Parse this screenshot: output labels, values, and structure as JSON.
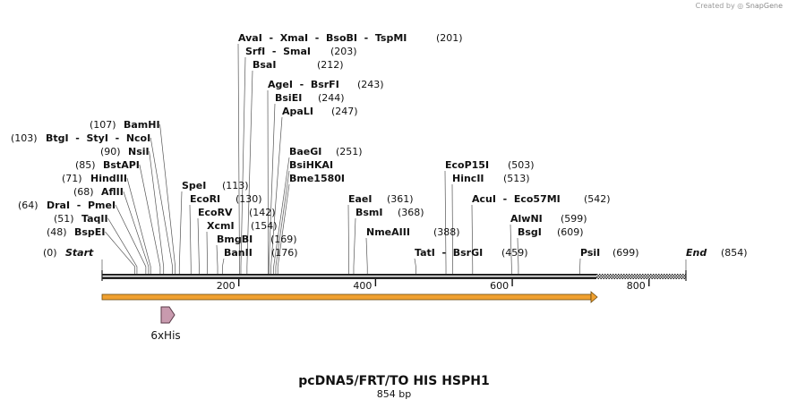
{
  "credit": {
    "text": "Created by",
    "brand": "SnapGene"
  },
  "map": {
    "title": "pcDNA5/FRT/TO HIS HSPH1",
    "length_label": "854 bp",
    "length": 854,
    "start_label": "Start",
    "end_label": "End",
    "start_pos": "(0)",
    "end_pos": "(854)"
  },
  "ticks": [
    {
      "value": 200,
      "label": "200"
    },
    {
      "value": 400,
      "label": "400"
    },
    {
      "value": 600,
      "label": "600"
    },
    {
      "value": 800,
      "label": "800"
    }
  ],
  "sites": [
    {
      "text": "AvaI  -  XmaI  -  BsoBI  -  TspMI",
      "pos": "(201)"
    },
    {
      "text": "SrfI  -  SmaI",
      "pos": "(203)"
    },
    {
      "text": "BsaI",
      "pos": "(212)"
    },
    {
      "text": "AgeI  -  BsrFI",
      "pos": "(243)"
    },
    {
      "text": "BsiEI",
      "pos": "(244)"
    },
    {
      "text": "ApaLI",
      "pos": "(247)"
    },
    {
      "text": "BaeGI",
      "pos": "(251)"
    },
    {
      "text": "BsiHKAI",
      "pos": ""
    },
    {
      "text": "Bme1580I",
      "pos": ""
    },
    {
      "text": "BamHI",
      "pos": "(107)"
    },
    {
      "text": "BtgI  -  StyI  -  NcoI",
      "pos": "(103)"
    },
    {
      "text": "NsiI",
      "pos": "(90)"
    },
    {
      "text": "BstAPI",
      "pos": "(85)"
    },
    {
      "text": "HindIII",
      "pos": "(71)"
    },
    {
      "text": "AflII",
      "pos": "(68)"
    },
    {
      "text": "DraI  -  PmeI",
      "pos": "(64)"
    },
    {
      "text": "TaqII",
      "pos": "(51)"
    },
    {
      "text": "BspEI",
      "pos": "(48)"
    },
    {
      "text": "SpeI",
      "pos": "(113)"
    },
    {
      "text": "EcoRI",
      "pos": "(130)"
    },
    {
      "text": "EcoRV",
      "pos": "(142)"
    },
    {
      "text": "XcmI",
      "pos": "(154)"
    },
    {
      "text": "BmgBI",
      "pos": "(169)"
    },
    {
      "text": "BanII",
      "pos": "(176)"
    },
    {
      "text": "EaeI",
      "pos": "(361)"
    },
    {
      "text": "BsmI",
      "pos": "(368)"
    },
    {
      "text": "NmeAIII",
      "pos": "(388)"
    },
    {
      "text": "EcoP15I",
      "pos": "(503)"
    },
    {
      "text": "HincII",
      "pos": "(513)"
    },
    {
      "text": "AcuI  -  Eco57MI",
      "pos": "(542)"
    },
    {
      "text": "AlwNI",
      "pos": "(599)"
    },
    {
      "text": "BsgI",
      "pos": "(609)"
    },
    {
      "text": "TatI  -  BsrGI",
      "pos": "(459)"
    },
    {
      "text": "PsiI",
      "pos": "(699)"
    }
  ],
  "features": [
    {
      "name": "6xHis"
    }
  ],
  "colors": {
    "backbone": "#222222",
    "orf_fill": "#f0a030",
    "orf_stroke": "#6b4a10",
    "tag_fill": "#c89aae",
    "tag_stroke": "#5a3a48",
    "leader": "#555555"
  }
}
